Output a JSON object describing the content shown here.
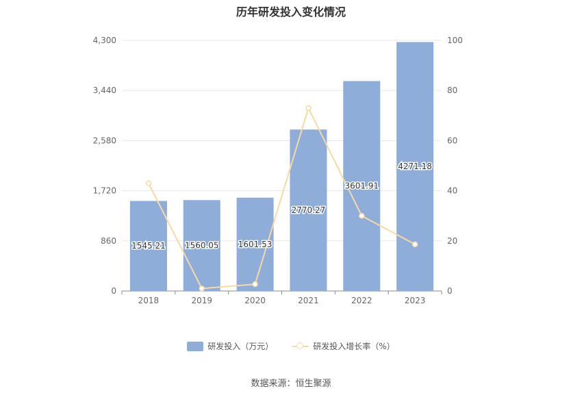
{
  "chart_data": {
    "type": "bar",
    "title": "历年研发投入变化情况",
    "categories": [
      "2018",
      "2019",
      "2020",
      "2021",
      "2022",
      "2023"
    ],
    "series": [
      {
        "name": "研发投入（万元）",
        "type": "bar",
        "axis": "left",
        "values": [
          1545.21,
          1560.05,
          1601.53,
          2770.27,
          3601.91,
          4271.18
        ],
        "labels": [
          "1545.21",
          "1560.05",
          "1601.53",
          "2770.27",
          "3601.91",
          "4271.18"
        ],
        "color": "#8eadd9"
      },
      {
        "name": "研发投入增长率（%）",
        "type": "line",
        "axis": "right",
        "values": [
          43,
          1,
          2.7,
          73,
          30,
          18.6
        ],
        "color": "#f9d9a3"
      }
    ],
    "y_left": {
      "ylim": [
        0,
        4300
      ],
      "ticks": [
        0,
        860,
        1720,
        2580,
        3440,
        4300
      ],
      "tick_labels": [
        "0",
        "860",
        "1,720",
        "2,580",
        "3,440",
        "4,300"
      ]
    },
    "y_right": {
      "ylim": [
        0,
        100
      ],
      "ticks": [
        0,
        20,
        40,
        60,
        80,
        100
      ],
      "tick_labels": [
        "0",
        "20",
        "40",
        "60",
        "80",
        "100"
      ]
    },
    "grid": true,
    "legend": "bottom-center"
  },
  "legend": {
    "bar_label": "研发投入（万元）",
    "line_label": "研发投入增长率（%）",
    "bar_color": "#8eadd9",
    "line_color": "#f9d9a3"
  },
  "source_text": "数据来源：恒生聚源"
}
